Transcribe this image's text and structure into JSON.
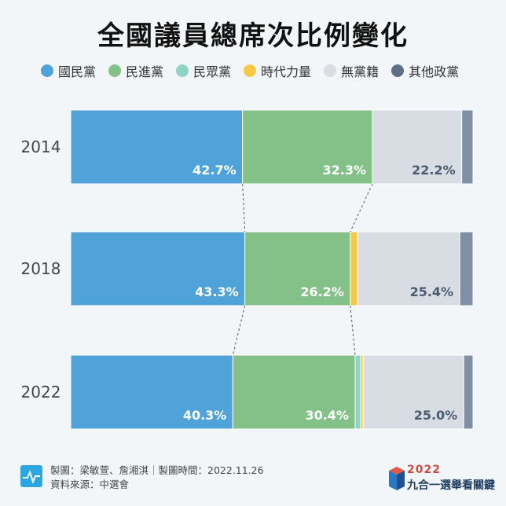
{
  "title": "全國議員總席次比例變化",
  "legend": [
    {
      "label": "國民黨",
      "color": "#4fa3d9"
    },
    {
      "label": "民進黨",
      "color": "#84c188"
    },
    {
      "label": "民眾黨",
      "color": "#8fd3c7"
    },
    {
      "label": "時代力量",
      "color": "#f6c945"
    },
    {
      "label": "無黨籍",
      "color": "#d8dde3"
    },
    {
      "label": "其他政黨",
      "color": "#5f6f8a"
    }
  ],
  "chart_data": {
    "type": "bar",
    "orientation": "horizontal",
    "stacked": true,
    "categories": [
      "2014",
      "2018",
      "2022"
    ],
    "series": [
      {
        "name": "國民黨",
        "values": [
          42.7,
          43.3,
          40.3
        ],
        "color": "#4fa3d9"
      },
      {
        "name": "民進黨",
        "values": [
          32.3,
          26.2,
          30.4
        ],
        "color": "#84c188"
      },
      {
        "name": "民眾黨",
        "values": [
          0,
          0,
          1.4
        ],
        "color": "#8fd3c7"
      },
      {
        "name": "時代力量",
        "values": [
          0,
          1.8,
          0.6
        ],
        "color": "#f6c945"
      },
      {
        "name": "無黨籍",
        "values": [
          22.2,
          25.4,
          25.0
        ],
        "color": "#d8dde3"
      },
      {
        "name": "其他政黨",
        "values": [
          2.8,
          3.3,
          2.3
        ],
        "color": "#7f8fa6"
      }
    ],
    "labels": [
      [
        "42.7%",
        "32.3%",
        "",
        "",
        "22.2%",
        ""
      ],
      [
        "43.3%",
        "26.2%",
        "",
        "",
        "25.4%",
        ""
      ],
      [
        "40.3%",
        "30.4%",
        "",
        "",
        "25.0%",
        ""
      ]
    ]
  },
  "footer": {
    "line1": "製圖：梁敏萱、詹湘淇｜製圖時間：2022.11.26",
    "line2": "資料來源：中選會"
  },
  "brand": {
    "year": "2022",
    "name": "九合一選舉看關鍵"
  }
}
